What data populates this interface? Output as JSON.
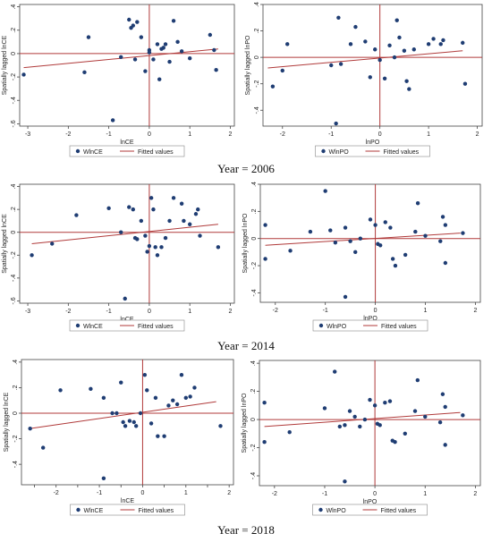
{
  "chart_data": [
    {
      "type": "scatter",
      "xlabel": "lnCE",
      "ylabel": "Spatially lagged lnCE",
      "xlim": [
        -3.2,
        2.1
      ],
      "ylim": [
        -0.62,
        0.42
      ],
      "xticks": [
        -3,
        -2,
        -1,
        0,
        1,
        2
      ],
      "yticks": [
        -0.6,
        -0.4,
        -0.2,
        0,
        0.2,
        0.4
      ],
      "ytick_labels": [
        "-.6",
        "-.4",
        "-.2",
        "0",
        ".2",
        ".4"
      ],
      "legend": [
        "WlnCE",
        "Fitted values"
      ],
      "fit": {
        "x": [
          -3.1,
          1.7
        ],
        "y": [
          -0.12,
          0.04
        ]
      },
      "points": [
        [
          -3.1,
          -0.18
        ],
        [
          -1.6,
          -0.16
        ],
        [
          -1.5,
          0.14
        ],
        [
          -0.7,
          -0.03
        ],
        [
          -0.5,
          0.29
        ],
        [
          -0.45,
          0.22
        ],
        [
          -0.4,
          0.24
        ],
        [
          -0.35,
          -0.05
        ],
        [
          -0.3,
          0.27
        ],
        [
          -0.2,
          0.14
        ],
        [
          -0.1,
          -0.15
        ],
        [
          0.0,
          0.03
        ],
        [
          0.0,
          0.01
        ],
        [
          0.1,
          -0.05
        ],
        [
          0.2,
          0.08
        ],
        [
          0.25,
          -0.22
        ],
        [
          0.3,
          0.04
        ],
        [
          0.35,
          0.05
        ],
        [
          0.4,
          0.08
        ],
        [
          0.6,
          0.28
        ],
        [
          0.7,
          0.1
        ],
        [
          0.5,
          -0.07
        ],
        [
          0.8,
          0.02
        ],
        [
          1.0,
          -0.04
        ],
        [
          1.5,
          0.16
        ],
        [
          1.6,
          0.03
        ],
        [
          1.65,
          -0.14
        ],
        [
          -0.9,
          -0.57
        ]
      ]
    },
    {
      "type": "scatter",
      "xlabel": "lnPO",
      "ylabel": "Spatially lagged lnPO",
      "xlim": [
        -2.4,
        2.1
      ],
      "ylim": [
        -0.52,
        0.4
      ],
      "xticks": [
        -2,
        -1,
        0,
        1,
        2
      ],
      "yticks": [
        -0.4,
        -0.2,
        0,
        0.2,
        0.4
      ],
      "ytick_labels": [
        "-.4",
        "-.2",
        "0",
        ".2",
        ".4"
      ],
      "legend": [
        "WlnPO",
        "Fitted values"
      ],
      "fit": {
        "x": [
          -2.3,
          1.7
        ],
        "y": [
          -0.08,
          0.05
        ]
      },
      "points": [
        [
          -2.2,
          -0.22
        ],
        [
          -2.0,
          -0.1
        ],
        [
          -1.9,
          0.1
        ],
        [
          -1.0,
          -0.06
        ],
        [
          -0.8,
          -0.05
        ],
        [
          -0.85,
          0.3
        ],
        [
          -0.6,
          0.1
        ],
        [
          -0.5,
          0.23
        ],
        [
          -0.3,
          0.12
        ],
        [
          -0.2,
          -0.15
        ],
        [
          -0.1,
          0.06
        ],
        [
          0.0,
          -0.02
        ],
        [
          0.1,
          -0.16
        ],
        [
          0.2,
          0.09
        ],
        [
          0.3,
          0.0
        ],
        [
          0.35,
          0.28
        ],
        [
          0.4,
          0.15
        ],
        [
          0.5,
          0.05
        ],
        [
          0.55,
          -0.18
        ],
        [
          0.6,
          -0.24
        ],
        [
          0.7,
          0.06
        ],
        [
          1.0,
          0.1
        ],
        [
          1.1,
          0.14
        ],
        [
          1.25,
          0.1
        ],
        [
          1.3,
          0.13
        ],
        [
          1.7,
          0.11
        ],
        [
          1.75,
          -0.2
        ],
        [
          -0.9,
          -0.5
        ]
      ]
    },
    {
      "type": "scatter",
      "xlabel": "lnCE",
      "ylabel": "Spatially lagged lnCE",
      "xlim": [
        -3.2,
        2.1
      ],
      "ylim": [
        -0.62,
        0.42
      ],
      "xticks": [
        -3,
        -2,
        -1,
        0,
        1,
        2
      ],
      "yticks": [
        -0.6,
        -0.4,
        -0.2,
        0,
        0.2,
        0.4
      ],
      "ytick_labels": [
        "-.6",
        "-.4",
        "-.2",
        "0",
        ".2",
        ".4"
      ],
      "legend": [
        "WlnCE",
        "Fitted values"
      ],
      "fit": {
        "x": [
          -2.9,
          1.7
        ],
        "y": [
          -0.1,
          0.07
        ]
      },
      "points": [
        [
          -2.9,
          -0.2
        ],
        [
          -2.4,
          -0.1
        ],
        [
          -1.8,
          0.15
        ],
        [
          -1.0,
          0.21
        ],
        [
          -0.7,
          0.0
        ],
        [
          -0.5,
          0.22
        ],
        [
          -0.4,
          0.2
        ],
        [
          -0.35,
          -0.05
        ],
        [
          -0.3,
          -0.06
        ],
        [
          -0.2,
          0.1
        ],
        [
          -0.1,
          -0.03
        ],
        [
          -0.05,
          -0.17
        ],
        [
          0.0,
          -0.12
        ],
        [
          0.05,
          0.3
        ],
        [
          0.1,
          0.2
        ],
        [
          0.15,
          -0.13
        ],
        [
          0.2,
          -0.2
        ],
        [
          0.3,
          -0.13
        ],
        [
          0.4,
          -0.05
        ],
        [
          0.5,
          0.1
        ],
        [
          0.6,
          0.3
        ],
        [
          0.8,
          0.25
        ],
        [
          0.85,
          0.1
        ],
        [
          1.0,
          0.07
        ],
        [
          1.15,
          0.16
        ],
        [
          1.2,
          0.2
        ],
        [
          1.25,
          -0.03
        ],
        [
          1.7,
          -0.13
        ],
        [
          -0.6,
          -0.58
        ]
      ]
    },
    {
      "type": "scatter",
      "xlabel": "lnPO",
      "ylabel": "Spatially lagged lnPO",
      "xlim": [
        -2.3,
        2.1
      ],
      "ylim": [
        -0.47,
        0.4
      ],
      "xticks": [
        -2,
        -1,
        0,
        1,
        2
      ],
      "yticks": [
        -0.4,
        -0.2,
        0,
        0.2,
        0.4
      ],
      "ytick_labels": [
        "-.4",
        "-.2",
        "0",
        ".2",
        ".4"
      ],
      "legend": [
        "WlnPO",
        "Fitted values"
      ],
      "fit": {
        "x": [
          -2.2,
          1.7
        ],
        "y": [
          -0.05,
          0.04
        ]
      },
      "points": [
        [
          -2.2,
          -0.15
        ],
        [
          -2.2,
          0.1
        ],
        [
          -1.7,
          -0.09
        ],
        [
          -1.3,
          0.05
        ],
        [
          -1.0,
          0.35
        ],
        [
          -0.9,
          0.06
        ],
        [
          -0.8,
          -0.03
        ],
        [
          -0.6,
          0.08
        ],
        [
          -0.5,
          -0.02
        ],
        [
          -0.4,
          -0.1
        ],
        [
          -0.3,
          0.0
        ],
        [
          -0.1,
          0.14
        ],
        [
          0.0,
          0.1
        ],
        [
          0.05,
          -0.04
        ],
        [
          0.1,
          -0.05
        ],
        [
          0.2,
          0.12
        ],
        [
          0.3,
          0.08
        ],
        [
          0.35,
          -0.15
        ],
        [
          0.4,
          -0.2
        ],
        [
          0.6,
          -0.12
        ],
        [
          0.8,
          0.05
        ],
        [
          0.85,
          0.26
        ],
        [
          1.0,
          0.02
        ],
        [
          1.3,
          -0.02
        ],
        [
          1.35,
          0.16
        ],
        [
          1.4,
          0.1
        ],
        [
          1.4,
          -0.18
        ],
        [
          1.75,
          0.04
        ],
        [
          -0.6,
          -0.43
        ]
      ]
    },
    {
      "type": "scatter",
      "xlabel": "lnCE",
      "ylabel": "Spatially lagged lnCE",
      "xlim": [
        -2.8,
        2.1
      ],
      "ylim": [
        -0.56,
        0.42
      ],
      "xticks": [
        -2.5,
        -2,
        -1.5,
        -1,
        -0.5,
        0,
        0.5,
        1,
        1.5,
        2
      ],
      "xtick_labels": [
        "",
        "-2",
        "",
        "-1",
        "",
        "0",
        "",
        "1",
        "",
        "2"
      ],
      "yticks": [
        -0.4,
        -0.2,
        0,
        0.2,
        0.4
      ],
      "ytick_labels": [
        "-.4",
        "-.2",
        "0",
        ".2",
        ".4"
      ],
      "legend": [
        "WlnCE",
        "Fitted values"
      ],
      "fit": {
        "x": [
          -2.6,
          1.7
        ],
        "y": [
          -0.12,
          0.09
        ]
      },
      "points": [
        [
          -2.6,
          -0.12
        ],
        [
          -2.3,
          -0.27
        ],
        [
          -1.9,
          0.18
        ],
        [
          -1.2,
          0.19
        ],
        [
          -0.9,
          0.12
        ],
        [
          -0.7,
          0.0
        ],
        [
          -0.6,
          0.0
        ],
        [
          -0.5,
          0.24
        ],
        [
          -0.45,
          -0.07
        ],
        [
          -0.4,
          -0.1
        ],
        [
          -0.3,
          -0.06
        ],
        [
          -0.2,
          -0.07
        ],
        [
          -0.15,
          -0.1
        ],
        [
          -0.05,
          0.0
        ],
        [
          0.05,
          0.3
        ],
        [
          0.1,
          0.18
        ],
        [
          0.2,
          -0.08
        ],
        [
          0.3,
          0.12
        ],
        [
          0.35,
          -0.18
        ],
        [
          0.5,
          -0.18
        ],
        [
          0.6,
          0.06
        ],
        [
          0.7,
          0.1
        ],
        [
          0.8,
          0.07
        ],
        [
          0.9,
          0.3
        ],
        [
          1.0,
          0.12
        ],
        [
          1.1,
          0.13
        ],
        [
          1.2,
          0.2
        ],
        [
          1.8,
          -0.1
        ],
        [
          -0.9,
          -0.51
        ]
      ]
    },
    {
      "type": "scatter",
      "xlabel": "lnPO",
      "ylabel": "Spatially lagged lnPO",
      "xlim": [
        -2.3,
        2.1
      ],
      "ylim": [
        -0.47,
        0.42
      ],
      "xticks": [
        -2,
        -1,
        0,
        1,
        2
      ],
      "yticks": [
        -0.4,
        -0.2,
        0,
        0.2,
        0.4
      ],
      "ytick_labels": [
        "-.4",
        "-.2",
        "0",
        ".2",
        ".4"
      ],
      "legend": [
        "WlnPO",
        "Fitted values"
      ],
      "fit": {
        "x": [
          -2.2,
          1.7
        ],
        "y": [
          -0.05,
          0.05
        ]
      },
      "points": [
        [
          -2.2,
          -0.16
        ],
        [
          -2.2,
          0.12
        ],
        [
          -1.7,
          -0.09
        ],
        [
          -1.0,
          0.08
        ],
        [
          -0.8,
          0.34
        ],
        [
          -0.7,
          -0.05
        ],
        [
          -0.6,
          -0.04
        ],
        [
          -0.5,
          0.06
        ],
        [
          -0.4,
          0.02
        ],
        [
          -0.3,
          -0.05
        ],
        [
          -0.2,
          0.0
        ],
        [
          -0.1,
          0.14
        ],
        [
          0.0,
          0.1
        ],
        [
          0.05,
          -0.03
        ],
        [
          0.1,
          -0.04
        ],
        [
          0.2,
          0.12
        ],
        [
          0.3,
          0.13
        ],
        [
          0.35,
          -0.15
        ],
        [
          0.4,
          -0.16
        ],
        [
          0.6,
          -0.1
        ],
        [
          0.8,
          0.06
        ],
        [
          0.85,
          0.28
        ],
        [
          1.0,
          0.02
        ],
        [
          1.3,
          -0.02
        ],
        [
          1.35,
          0.18
        ],
        [
          1.4,
          0.09
        ],
        [
          1.4,
          -0.18
        ],
        [
          1.75,
          0.03
        ],
        [
          -0.6,
          -0.44
        ]
      ]
    }
  ],
  "year_labels": [
    "Year = 2006",
    "Year = 2014",
    "Year = 2018"
  ],
  "colors": {
    "point": "#1f3d73",
    "fit": "#b03a3a",
    "frame": "#444444",
    "text": "#222222"
  }
}
